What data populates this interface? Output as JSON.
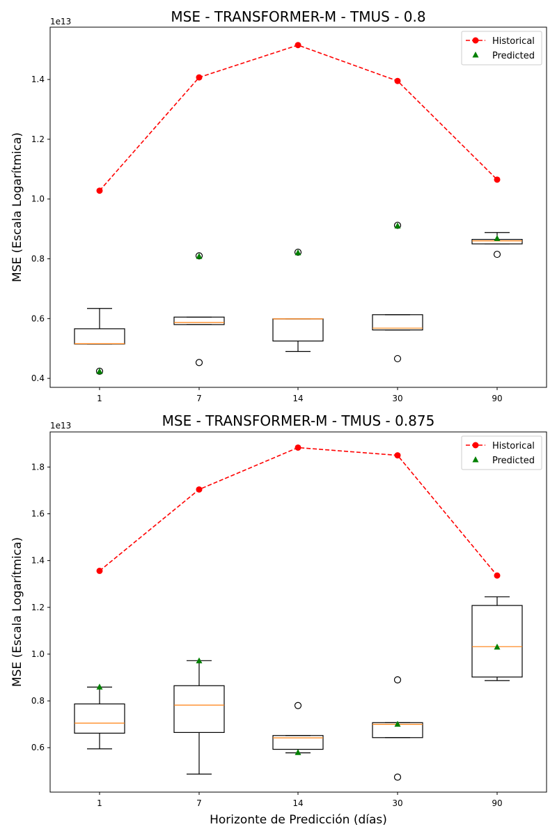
{
  "chart_data": [
    {
      "type": "box",
      "title": "MSE - TRANSFORMER-M - TMUS - 0.8",
      "ylabel": "MSE (Escala Logarítmica)",
      "xlabel": "",
      "y_offset_label": "1e13",
      "categories": [
        "1",
        "7",
        "14",
        "30",
        "90"
      ],
      "ylim": [
        0.37,
        1.575
      ],
      "yticks": [
        0.4,
        0.6,
        0.8,
        1.0,
        1.2,
        1.4
      ],
      "ytick_labels": [
        "0.4",
        "0.6",
        "0.8",
        "1.0",
        "1.2",
        "1.4"
      ],
      "legend": {
        "position": "upper right",
        "entries": [
          "Historical",
          "Predicted"
        ]
      },
      "boxes": [
        {
          "whislo": 5.15,
          "q1": 5.15,
          "med": 5.16,
          "q3": 5.66,
          "whishi": 6.34,
          "fliers": [
            4.24
          ]
        },
        {
          "whislo": 5.8,
          "q1": 5.8,
          "med": 5.87,
          "q3": 6.05,
          "whishi": 6.05,
          "fliers": [
            4.53,
            8.1
          ]
        },
        {
          "whislo": 4.9,
          "q1": 5.25,
          "med": 5.99,
          "q3": 5.99,
          "whishi": 5.99,
          "fliers": [
            8.22
          ]
        },
        {
          "whislo": 5.62,
          "q1": 5.62,
          "med": 5.68,
          "q3": 6.13,
          "whishi": 6.13,
          "fliers": [
            4.66,
            9.12
          ]
        },
        {
          "whislo": 8.5,
          "q1": 8.5,
          "med": 8.6,
          "q3": 8.65,
          "whishi": 8.88,
          "fliers": [
            8.15
          ]
        }
      ],
      "series": [
        {
          "name": "Historical",
          "style": "dashed-line-circle",
          "color": "#ff0000",
          "values": [
            10.28,
            14.07,
            15.15,
            13.95,
            10.65
          ]
        },
        {
          "name": "Predicted",
          "style": "triangle",
          "color": "#008000",
          "values": [
            4.23,
            8.08,
            8.2,
            9.1,
            8.68
          ]
        }
      ]
    },
    {
      "type": "box",
      "title": "MSE - TRANSFORMER-M - TMUS - 0.875",
      "ylabel": "MSE (Escala Logarítmica)",
      "xlabel": "Horizonte de Predicción (días)",
      "y_offset_label": "1e13",
      "categories": [
        "1",
        "7",
        "14",
        "30",
        "90"
      ],
      "ylim": [
        0.41,
        1.95
      ],
      "yticks": [
        0.6,
        0.8,
        1.0,
        1.2,
        1.4,
        1.6,
        1.8
      ],
      "ytick_labels": [
        "0.6",
        "0.8",
        "1.0",
        "1.2",
        "1.4",
        "1.6",
        "1.8"
      ],
      "legend": {
        "position": "upper right",
        "entries": [
          "Historical",
          "Predicted"
        ]
      },
      "boxes": [
        {
          "whislo": 5.95,
          "q1": 6.62,
          "med": 7.05,
          "q3": 7.87,
          "whishi": 8.59,
          "fliers": []
        },
        {
          "whislo": 4.87,
          "q1": 6.65,
          "med": 7.82,
          "q3": 8.65,
          "whishi": 9.72,
          "fliers": []
        },
        {
          "whislo": 5.78,
          "q1": 5.93,
          "med": 6.42,
          "q3": 6.52,
          "whishi": 6.52,
          "fliers": [
            7.8
          ]
        },
        {
          "whislo": 6.43,
          "q1": 6.43,
          "med": 7.0,
          "q3": 7.07,
          "whishi": 7.07,
          "fliers": [
            8.9,
            4.74
          ]
        },
        {
          "whislo": 8.87,
          "q1": 9.02,
          "med": 10.32,
          "q3": 12.08,
          "whishi": 12.45,
          "fliers": []
        }
      ],
      "series": [
        {
          "name": "Historical",
          "style": "dashed-line-circle",
          "color": "#ff0000",
          "values": [
            13.56,
            17.04,
            18.83,
            18.5,
            13.36
          ]
        },
        {
          "name": "Predicted",
          "style": "triangle",
          "color": "#008000",
          "values": [
            8.59,
            9.71,
            5.79,
            7.0,
            10.3
          ]
        }
      ]
    }
  ]
}
